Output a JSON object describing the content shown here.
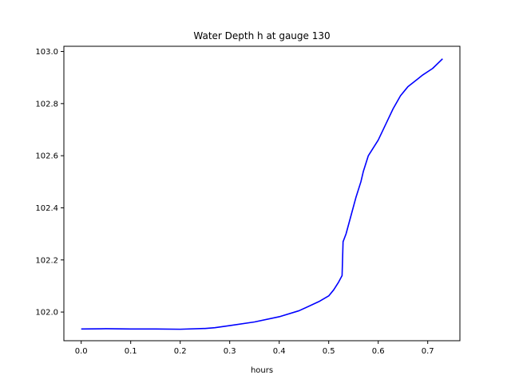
{
  "chart_data": {
    "type": "line",
    "title": "Water Depth h at gauge 130",
    "xlabel": "hours",
    "ylabel": "",
    "xlim": [
      -0.035,
      0.765
    ],
    "ylim": [
      101.89,
      103.02
    ],
    "xticks": [
      0.0,
      0.1,
      0.2,
      0.3,
      0.4,
      0.5,
      0.6,
      0.7
    ],
    "xtick_labels": [
      "0.0",
      "0.1",
      "0.2",
      "0.3",
      "0.4",
      "0.5",
      "0.6",
      "0.7"
    ],
    "yticks": [
      102.0,
      102.2,
      102.4,
      102.6,
      102.8,
      103.0
    ],
    "ytick_labels": [
      "102.0",
      "102.2",
      "102.4",
      "102.6",
      "102.8",
      "103.0"
    ],
    "grid": false,
    "legend": "none",
    "series": [
      {
        "color": "#0000ff",
        "x": [
          0.0,
          0.05,
          0.1,
          0.15,
          0.2,
          0.25,
          0.27,
          0.3,
          0.35,
          0.4,
          0.44,
          0.48,
          0.5,
          0.51,
          0.52,
          0.527,
          0.529,
          0.535,
          0.545,
          0.555,
          0.565,
          0.57,
          0.58,
          0.6,
          0.62,
          0.63,
          0.645,
          0.66,
          0.68,
          0.69,
          0.71,
          0.73
        ],
        "y": [
          101.935,
          101.936,
          101.935,
          101.935,
          101.934,
          101.937,
          101.94,
          101.948,
          101.962,
          101.982,
          102.005,
          102.04,
          102.062,
          102.085,
          102.115,
          102.14,
          102.27,
          102.3,
          102.37,
          102.44,
          102.5,
          102.54,
          102.6,
          102.66,
          102.74,
          102.78,
          102.83,
          102.865,
          102.895,
          102.91,
          102.935,
          102.972
        ]
      }
    ]
  }
}
